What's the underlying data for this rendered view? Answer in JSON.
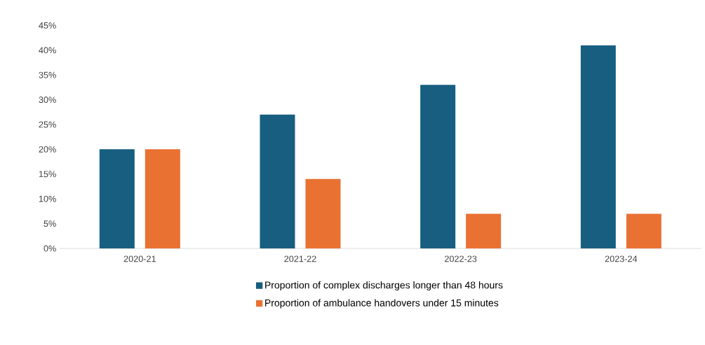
{
  "chart_data": {
    "type": "bar",
    "categories": [
      "2020-21",
      "2021-22",
      "2022-23",
      "2023-24"
    ],
    "series": [
      {
        "name": "Proportion of complex discharges longer than 48 hours",
        "color": "#175e80",
        "values": [
          20,
          27,
          33,
          41
        ]
      },
      {
        "name": "Proportion of ambulance handovers under 15 minutes",
        "color": "#e97132",
        "values": [
          20,
          14,
          7,
          7
        ]
      }
    ],
    "ylim": [
      0,
      45
    ],
    "yticks": [
      {
        "value": 0,
        "label": "0%"
      },
      {
        "value": 5,
        "label": "5%"
      },
      {
        "value": 10,
        "label": "10%"
      },
      {
        "value": 15,
        "label": "15%"
      },
      {
        "value": 20,
        "label": "20%"
      },
      {
        "value": 25,
        "label": "25%"
      },
      {
        "value": 30,
        "label": "30%"
      },
      {
        "value": 35,
        "label": "35%"
      },
      {
        "value": 40,
        "label": "40%"
      },
      {
        "value": 45,
        "label": "45%"
      }
    ],
    "legend": "bottom"
  }
}
